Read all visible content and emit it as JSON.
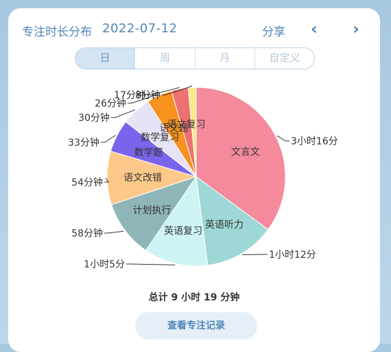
{
  "header": {
    "title": "专注时长分布",
    "date": "2022-07-12",
    "share_label": "分享"
  },
  "tabs": [
    {
      "label": "日",
      "active": true
    },
    {
      "label": "周",
      "active": false
    },
    {
      "label": "月",
      "active": false
    },
    {
      "label": "自定义",
      "active": false
    }
  ],
  "chart_data": {
    "type": "pie",
    "slices": [
      {
        "label": "文言文",
        "value_label": "3小时16分",
        "minutes": 196,
        "color": "#f48a9c"
      },
      {
        "label": "英语听力",
        "value_label": "1小时12分",
        "minutes": 72,
        "color": "#9ed8d6"
      },
      {
        "label": "英语复习",
        "value_label": "1小时5分",
        "minutes": 65,
        "color": "#cdf4f2"
      },
      {
        "label": "计划执行",
        "value_label": "58分钟",
        "minutes": 58,
        "color": "#8eb5b8"
      },
      {
        "label": "语文改错",
        "value_label": "54分钟",
        "minutes": 54,
        "color": "#fdc98a"
      },
      {
        "label": "数学题",
        "value_label": "33分钟",
        "minutes": 33,
        "color": "#7a64ec"
      },
      {
        "label": "数学复习",
        "value_label": "30分钟",
        "minutes": 30,
        "color": "#e8e2f6"
      },
      {
        "label": "语文题",
        "value_label": "26分钟",
        "minutes": 26,
        "color": "#f7921e"
      },
      {
        "label": "语文复习",
        "value_label": "17分钟",
        "minutes": 17,
        "color": "#ee7070"
      },
      {
        "label": "",
        "value_label": "8分钟",
        "minutes": 8,
        "color": "#fbe98a"
      }
    ]
  },
  "total_label": "总计 9 小时 19 分钟",
  "records_button_label": "查看专注记录"
}
